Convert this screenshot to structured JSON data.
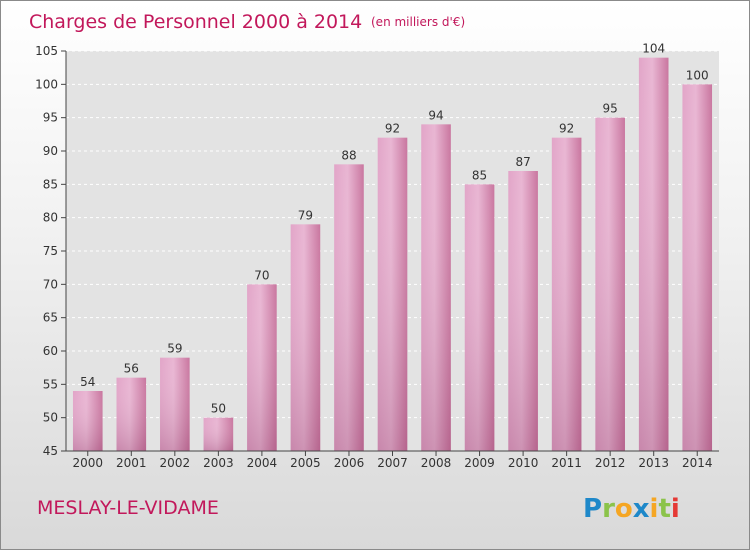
{
  "chart_data": {
    "type": "bar",
    "title": "Charges de Personnel 2000 à 2014",
    "subtitle": "(en milliers d'€)",
    "categories": [
      "2000",
      "2001",
      "2002",
      "2003",
      "2004",
      "2005",
      "2006",
      "2007",
      "2008",
      "2009",
      "2010",
      "2011",
      "2012",
      "2013",
      "2014"
    ],
    "values": [
      54,
      56,
      59,
      50,
      70,
      79,
      88,
      92,
      94,
      85,
      87,
      92,
      95,
      104,
      100
    ],
    "ylim": [
      45,
      105
    ],
    "yticks": [
      "45",
      "50",
      "55",
      "60",
      "65",
      "70",
      "75",
      "80",
      "85",
      "90",
      "95",
      "100",
      "105"
    ],
    "grid": true,
    "bar_color": "#d98ab6"
  },
  "footer": {
    "commune": "MESLAY-LE-VIDAME",
    "brand": "Proxiti",
    "brand_letters": [
      {
        "char": "P",
        "color": "#1e88c9"
      },
      {
        "char": "r",
        "color": "#8bc34a"
      },
      {
        "char": "o",
        "color": "#f5a623"
      },
      {
        "char": "x",
        "color": "#1e88c9"
      },
      {
        "char": "i",
        "color": "#f5a623"
      },
      {
        "char": "t",
        "color": "#8bc34a"
      },
      {
        "char": "i",
        "color": "#e53935"
      }
    ]
  }
}
